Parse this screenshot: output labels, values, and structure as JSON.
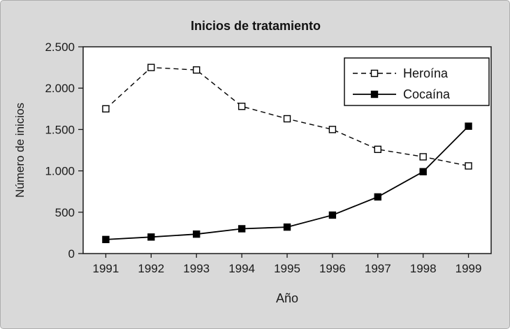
{
  "title": "Inicios de tratamiento",
  "colors": {
    "background": "#d9d9d9",
    "plot_bg": "#ffffff",
    "line": "#000000",
    "text": "#1a1a1a"
  },
  "chart_data": {
    "type": "line",
    "title": "Inicios de tratamiento",
    "xlabel": "Año",
    "ylabel": "Número de inicios",
    "categories": [
      "1991",
      "1992",
      "1993",
      "1994",
      "1995",
      "1996",
      "1997",
      "1998",
      "1999"
    ],
    "series": [
      {
        "name": "Heroína",
        "style": "dashed",
        "marker": "open-square",
        "values": [
          1750,
          2250,
          2220,
          1780,
          1630,
          1500,
          1260,
          1170,
          1060
        ]
      },
      {
        "name": "Cocaína",
        "style": "solid",
        "marker": "filled-square",
        "values": [
          170,
          200,
          235,
          300,
          320,
          465,
          685,
          990,
          1540
        ]
      }
    ],
    "ylim": [
      0,
      2500
    ],
    "yticks": [
      0,
      500,
      1000,
      1500,
      2000,
      2500
    ],
    "ytick_labels": [
      "0",
      "500",
      "1.000",
      "1.500",
      "2.000",
      "2.500"
    ],
    "grid": false,
    "legend_position": "top-right"
  }
}
